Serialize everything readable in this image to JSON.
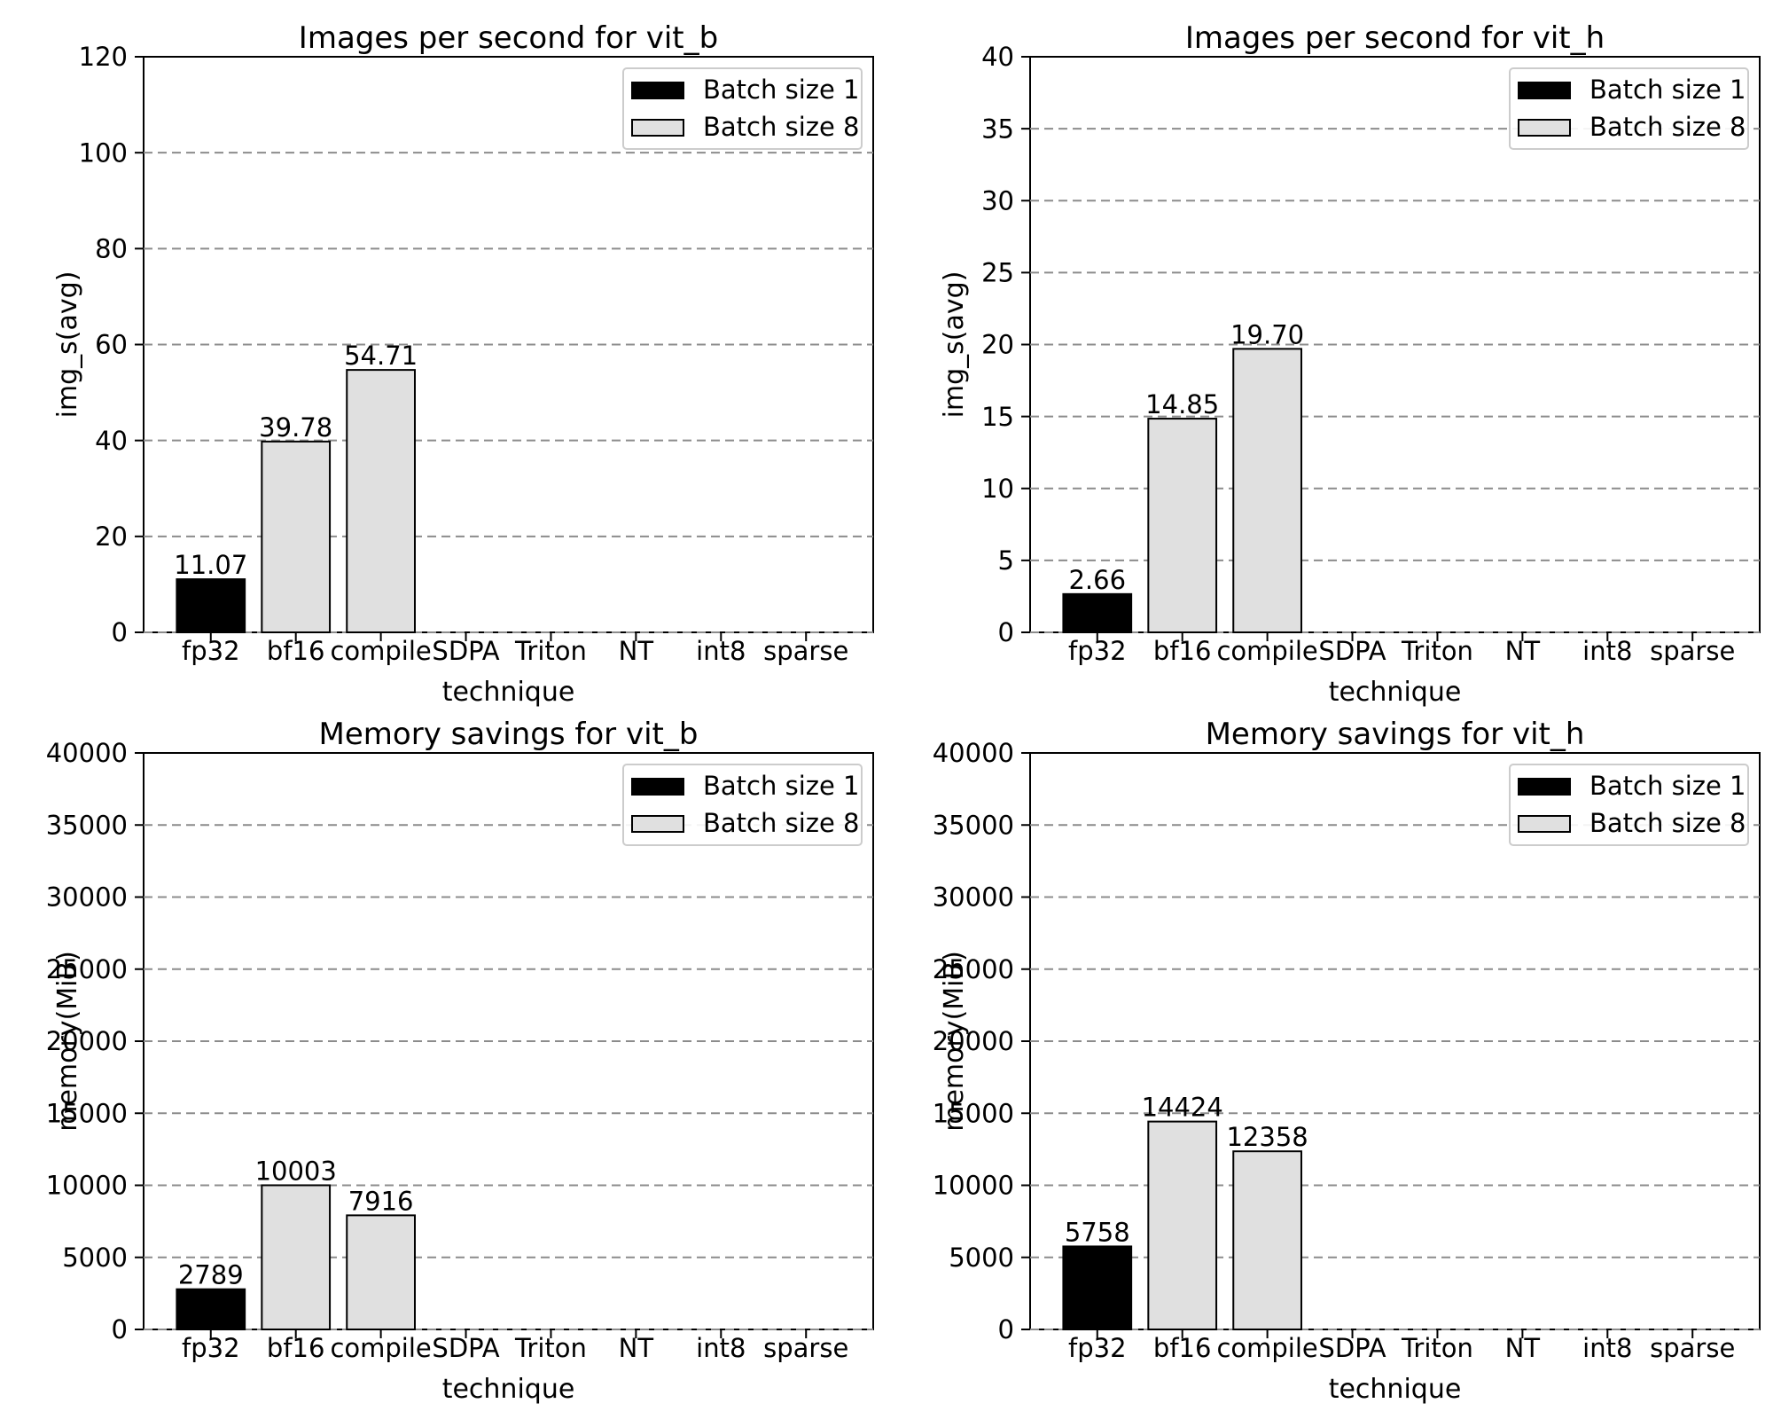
{
  "legend": {
    "items": [
      {
        "label": "Batch size 1",
        "color": "#000000"
      },
      {
        "label": "Batch size 8",
        "color": "#e0e0e0"
      }
    ]
  },
  "styles": {
    "background": "#ffffff",
    "bar_edge": "#000000",
    "batch1_color": "#000000",
    "batch8_color": "#e0e0e0",
    "grid_color": "#8c8c8c",
    "legend_border": "#cccccc"
  },
  "chart_data": [
    {
      "id": "img-per-sec-vit_b",
      "type": "bar",
      "title": "Images per second for vit_b",
      "xlabel": "technique",
      "ylabel": "img_s(avg)",
      "ylim": [
        0,
        120
      ],
      "yticks": [
        0,
        20,
        40,
        60,
        80,
        100,
        120
      ],
      "grid": "dashed-horizontal",
      "legend_position": "upper-right",
      "categories": [
        "fp32",
        "bf16",
        "compile",
        "SDPA",
        "Triton",
        "NT",
        "int8",
        "sparse"
      ],
      "series": [
        {
          "name": "Batch size 1",
          "color": "#000000",
          "values": [
            11.07,
            null,
            null,
            null,
            null,
            null,
            null,
            null
          ],
          "labels": [
            "11.07",
            null,
            null,
            null,
            null,
            null,
            null,
            null
          ]
        },
        {
          "name": "Batch size 8",
          "color": "#e0e0e0",
          "values": [
            null,
            39.78,
            54.71,
            null,
            null,
            null,
            null,
            null
          ],
          "labels": [
            null,
            "39.78",
            "54.71",
            null,
            null,
            null,
            null,
            null
          ]
        }
      ]
    },
    {
      "id": "img-per-sec-vit_h",
      "type": "bar",
      "title": "Images per second for vit_h",
      "xlabel": "technique",
      "ylabel": "img_s(avg)",
      "ylim": [
        0,
        40
      ],
      "yticks": [
        0,
        5,
        10,
        15,
        20,
        25,
        30,
        35,
        40
      ],
      "grid": "dashed-horizontal",
      "legend_position": "upper-right",
      "categories": [
        "fp32",
        "bf16",
        "compile",
        "SDPA",
        "Triton",
        "NT",
        "int8",
        "sparse"
      ],
      "series": [
        {
          "name": "Batch size 1",
          "color": "#000000",
          "values": [
            2.66,
            null,
            null,
            null,
            null,
            null,
            null,
            null
          ],
          "labels": [
            "2.66",
            null,
            null,
            null,
            null,
            null,
            null,
            null
          ]
        },
        {
          "name": "Batch size 8",
          "color": "#e0e0e0",
          "values": [
            null,
            14.85,
            19.7,
            null,
            null,
            null,
            null,
            null
          ],
          "labels": [
            null,
            "14.85",
            "19.70",
            null,
            null,
            null,
            null,
            null
          ]
        }
      ]
    },
    {
      "id": "memory-vit_b",
      "type": "bar",
      "title": "Memory savings for vit_b",
      "xlabel": "technique",
      "ylabel": "memory(MiB)",
      "ylim": [
        0,
        40000
      ],
      "yticks": [
        0,
        5000,
        10000,
        15000,
        20000,
        25000,
        30000,
        35000,
        40000
      ],
      "grid": "dashed-horizontal",
      "legend_position": "upper-right",
      "categories": [
        "fp32",
        "bf16",
        "compile",
        "SDPA",
        "Triton",
        "NT",
        "int8",
        "sparse"
      ],
      "series": [
        {
          "name": "Batch size 1",
          "color": "#000000",
          "values": [
            2789,
            null,
            null,
            null,
            null,
            null,
            null,
            null
          ],
          "labels": [
            "2789",
            null,
            null,
            null,
            null,
            null,
            null,
            null
          ]
        },
        {
          "name": "Batch size 8",
          "color": "#e0e0e0",
          "values": [
            null,
            10003,
            7916,
            null,
            null,
            null,
            null,
            null
          ],
          "labels": [
            null,
            "10003",
            "7916",
            null,
            null,
            null,
            null,
            null
          ]
        }
      ]
    },
    {
      "id": "memory-vit_h",
      "type": "bar",
      "title": "Memory savings for vit_h",
      "xlabel": "technique",
      "ylabel": "memory(MiB)",
      "ylim": [
        0,
        40000
      ],
      "yticks": [
        0,
        5000,
        10000,
        15000,
        20000,
        25000,
        30000,
        35000,
        40000
      ],
      "grid": "dashed-horizontal",
      "legend_position": "upper-right",
      "categories": [
        "fp32",
        "bf16",
        "compile",
        "SDPA",
        "Triton",
        "NT",
        "int8",
        "sparse"
      ],
      "series": [
        {
          "name": "Batch size 1",
          "color": "#000000",
          "values": [
            5758,
            null,
            null,
            null,
            null,
            null,
            null,
            null
          ],
          "labels": [
            "5758",
            null,
            null,
            null,
            null,
            null,
            null,
            null
          ]
        },
        {
          "name": "Batch size 8",
          "color": "#e0e0e0",
          "values": [
            null,
            14424,
            12358,
            null,
            null,
            null,
            null,
            null
          ],
          "labels": [
            null,
            "14424",
            "12358",
            null,
            null,
            null,
            null,
            null
          ]
        }
      ]
    }
  ]
}
